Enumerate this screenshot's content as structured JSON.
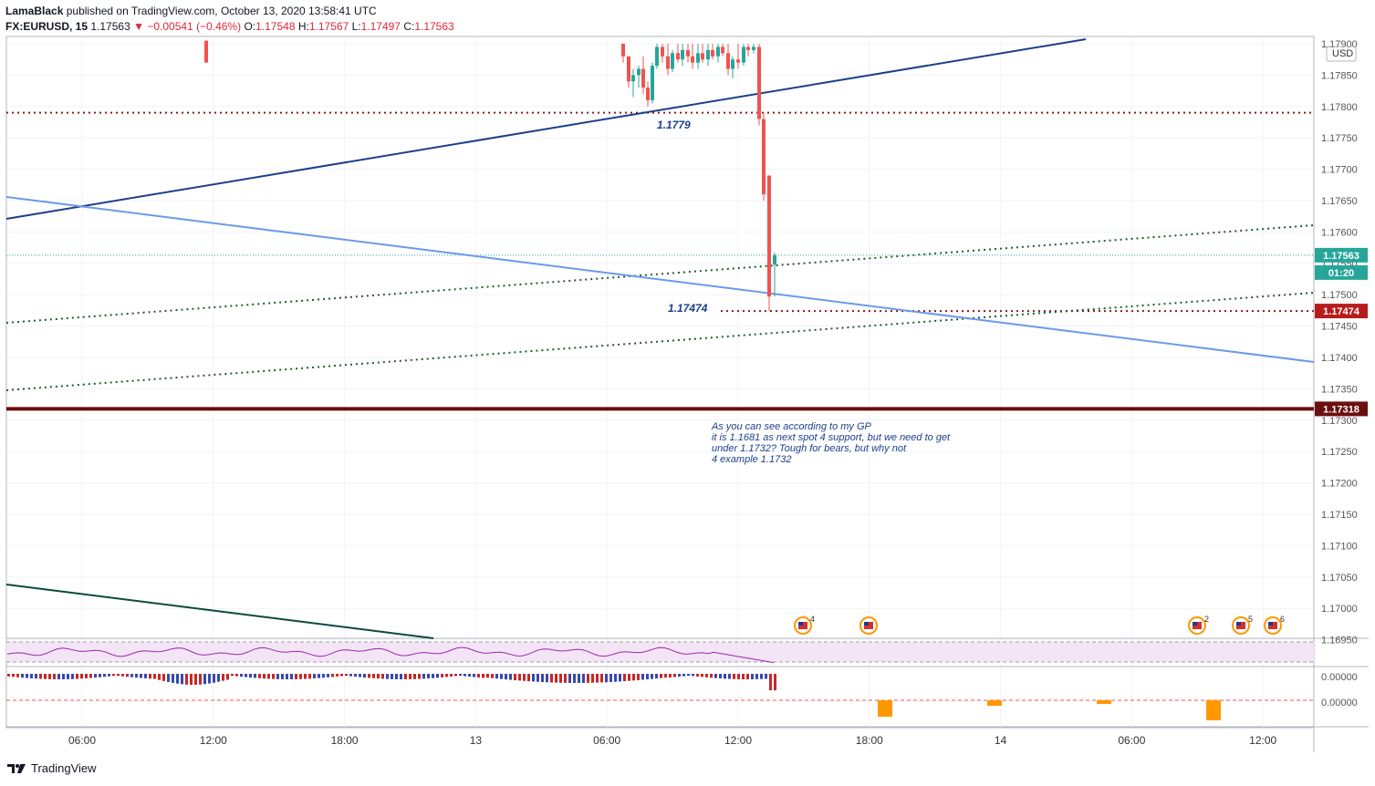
{
  "header": {
    "author": "LamaBlack",
    "published": "published on TradingView.com, October 13, 2020 13:58:41 UTC",
    "symbol": "FX:EURUSD, 15",
    "last": "1.17563",
    "change": "−0.00541 (−0.46%)",
    "o_label": "O:",
    "o": "1.17548",
    "h_label": "H:",
    "h": "1.17567",
    "l_label": "L:",
    "l": "1.17497",
    "c_label": "C:",
    "c": "1.17563"
  },
  "footer": {
    "brand": "TradingView"
  },
  "colors": {
    "up": "#26a69a",
    "down": "#ef5350",
    "trend_dark": "#1c3f8a",
    "trend_light": "#6b9ae8",
    "dotted_red": "#8b1a1a",
    "dotted_green": "#1e5e2a",
    "support": "#6b0f0f",
    "trend_green": "#0d4a3a",
    "rsi": "#9c27b0",
    "rsi_band": "#f3e5f5"
  },
  "chart_data": {
    "type": "candlestick",
    "currency": "USD",
    "y_ticks": [
      "1.17900",
      "1.17850",
      "1.17800",
      "1.17750",
      "1.17700",
      "1.17650",
      "1.17600",
      "1.17550",
      "1.17500",
      "1.17450",
      "1.17400",
      "1.17350",
      "1.17300",
      "1.17250",
      "1.17200",
      "1.17150",
      "1.17100",
      "1.17050",
      "1.17000",
      "1.16950"
    ],
    "x_ticks": [
      "06:00",
      "12:00",
      "18:00",
      "13",
      "06:00",
      "12:00",
      "18:00",
      "14",
      "06:00",
      "12:00"
    ],
    "price_tags": {
      "last": "1.17563",
      "countdown": "01:20",
      "low": "1.17474",
      "support": "1.17318"
    },
    "annotations": {
      "level_1": "1.1779",
      "level_2": "1.17474",
      "note": [
        "As you can see according to my GP",
        "it is 1.1681 as next spot 4 support, but we need to get",
        "under 1.1732? Tough for bears, but why not",
        "4 example 1.1732"
      ]
    },
    "events": [
      {
        "count": "4"
      },
      {
        "count": ""
      },
      {
        "count": "2"
      },
      {
        "count": "5"
      },
      {
        "count": "6"
      }
    ],
    "indicator_ticks": [
      "0.00000",
      "0.00000"
    ]
  }
}
